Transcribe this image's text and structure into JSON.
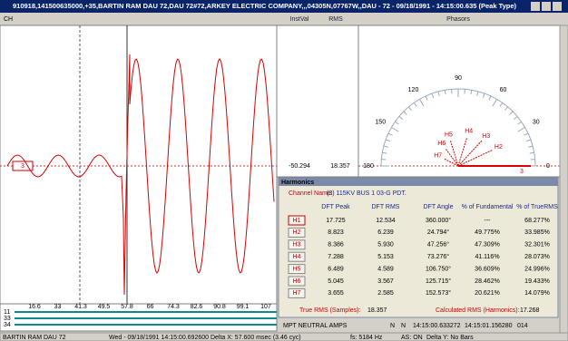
{
  "window": {
    "title": "910918,141500635000,+35,BARTIN RAM   DAU 72,DAU 72#72,ARKEY ELECTRIC COMPANY,,,04305N,07767W,,DAU - 72 - 09/18/1991 - 14:15:00.635 (Peak Type)"
  },
  "toolbar": {
    "ch": "CH",
    "inst_val": "InstVal",
    "rms": "RMS",
    "phasors": "Phasors"
  },
  "waveform": {
    "channel": "3",
    "x_labels": [
      "16.6",
      "33",
      "41.3",
      "49.5",
      "57.8",
      "66",
      "74.3",
      "82.6",
      "90.8",
      "99.1",
      "107"
    ],
    "channel_rows": [
      "11",
      "33",
      "34"
    ]
  },
  "readout": {
    "inst_val": "-50.294",
    "rms": "18.357"
  },
  "phasors": {
    "angle_labels": [
      "0",
      "30",
      "60",
      "90",
      "120",
      "150",
      "180"
    ],
    "vector_labels": [
      "3",
      "H2",
      "H3",
      "H4",
      "H5",
      "H6",
      "H7"
    ]
  },
  "harmonics": {
    "title": "Harmonics",
    "channel_label": "Channel Name:",
    "channel": "(3) 115KV BUS 1 03-G PDT.",
    "columns": [
      "DFT Peak",
      "DFT RMS",
      "DFT Angle",
      "% of Fundamental",
      "% of TrueRMS"
    ],
    "rows": [
      [
        "H1",
        "17.725",
        "12.534",
        "360.000°",
        "---",
        "68.277%"
      ],
      [
        "H2",
        "8.823",
        "6.239",
        "24.794°",
        "49.775%",
        "33.985%"
      ],
      [
        "H3",
        "8.386",
        "5.930",
        "47.256°",
        "47.309%",
        "32.301%"
      ],
      [
        "H4",
        "7.288",
        "5.153",
        "73.276°",
        "41.116%",
        "28.073%"
      ],
      [
        "H5",
        "6.489",
        "4.589",
        "106.750°",
        "36.609%",
        "24.996%"
      ],
      [
        "H6",
        "5.045",
        "3.567",
        "125.715°",
        "28.462%",
        "19.433%"
      ],
      [
        "H7",
        "3.655",
        "2.585",
        "152.573°",
        "20.621%",
        "14.079%"
      ]
    ],
    "true_rms_label": "True RMS (Samples):",
    "true_rms": "18.357",
    "calc_rms_label": "Calculated RMS (Harmonics):",
    "calc_rms": "17.268"
  },
  "channel_bar": [
    "MPT NEUTRAL AMPS",
    "N",
    "N",
    "14:15:00.633272",
    "14:15:01.156280",
    "014"
  ],
  "status": [
    "BARTIN RAM   DAU 72",
    "Wed - 09/18/1991 14:15:00.692600   Delta X: 57.600 msec (3.46 cyc)",
    "fs: 5184 Hz",
    "AS: ON",
    "Delta Y: No Bars"
  ]
}
